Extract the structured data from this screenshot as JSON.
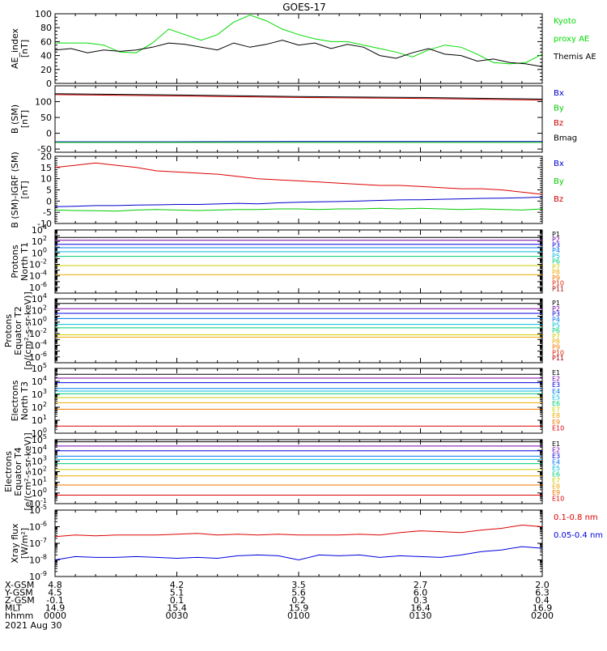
{
  "title": "GOES-17",
  "date_label": "2021 Aug 30",
  "bottom_rows": [
    {
      "label": "X-GSM",
      "values": [
        "4.8",
        "4.2",
        "3.5",
        "2.7",
        "2.0"
      ]
    },
    {
      "label": "Y-GSM",
      "values": [
        "4.5",
        "5.1",
        "5.6",
        "6.0",
        "6.3"
      ]
    },
    {
      "label": "Z-GSM",
      "values": [
        "-0.1",
        "0.1",
        "0.2",
        "0.3",
        "0.4"
      ]
    },
    {
      "label": "MLT",
      "values": [
        "14.9",
        "15.4",
        "15.9",
        "16.4",
        "16.9"
      ]
    },
    {
      "label": "hhmm",
      "values": [
        "0000",
        "0030",
        "0100",
        "0130",
        "0200"
      ]
    }
  ],
  "chart_data": [
    {
      "type": "line",
      "ylabel": [
        "AE_index",
        "[nT]"
      ],
      "ylim": [
        0,
        100
      ],
      "ticks": [
        "0",
        "20",
        "40",
        "60",
        "80",
        "100"
      ],
      "minor_ticks": 4,
      "x": [
        0,
        4,
        8,
        12,
        16,
        20,
        24,
        28,
        32,
        36,
        40,
        44,
        48,
        52,
        56,
        60,
        64,
        68,
        72,
        76,
        80,
        84,
        88,
        92,
        96,
        100,
        104,
        108,
        112,
        116,
        120
      ],
      "series": [
        {
          "name": "Kyoto proxy AE",
          "color": "#00dd00",
          "values": [
            58,
            58,
            58,
            55,
            45,
            44,
            58,
            78,
            70,
            62,
            70,
            88,
            98,
            90,
            78,
            70,
            64,
            60,
            60,
            55,
            50,
            45,
            38,
            48,
            55,
            52,
            42,
            30,
            28,
            30,
            42
          ]
        },
        {
          "name": "Themis AE",
          "color": "#000000",
          "values": [
            48,
            50,
            44,
            48,
            46,
            48,
            52,
            58,
            56,
            52,
            48,
            58,
            52,
            56,
            62,
            55,
            58,
            50,
            56,
            52,
            40,
            36,
            44,
            50,
            42,
            40,
            32,
            35,
            30,
            28,
            24
          ]
        }
      ],
      "legend": [
        {
          "text": "Kyoto",
          "color": "#00dd00"
        },
        {
          "text": "proxy AE",
          "color": "#00dd00"
        },
        {
          "text": "Themis AE",
          "color": "#000000"
        }
      ]
    },
    {
      "type": "line",
      "ylabel": [
        "B (SM)",
        "[nT]"
      ],
      "ylim": [
        -60,
        150
      ],
      "ticks": [
        "-50",
        "0",
        "50",
        "100"
      ],
      "tick_values": [
        -50,
        0,
        50,
        100
      ],
      "x": [
        0,
        30,
        60,
        90,
        120
      ],
      "series": [
        {
          "name": "Bx",
          "color": "#0000cc",
          "values": [
            -27,
            -27,
            -26,
            -26,
            -26
          ]
        },
        {
          "name": "By",
          "color": "#00cc00",
          "values": [
            -29,
            -29,
            -29,
            -29,
            -29
          ]
        },
        {
          "name": "Bz",
          "color": "#cc0000",
          "values": [
            122,
            118,
            113,
            110,
            105
          ]
        },
        {
          "name": "Bmag",
          "color": "#000000",
          "values": [
            125,
            121,
            116,
            113,
            108
          ]
        }
      ],
      "legend": [
        {
          "text": "Bx",
          "color": "#0000cc"
        },
        {
          "text": "By",
          "color": "#00cc00"
        },
        {
          "text": "Bz",
          "color": "#cc0000"
        },
        {
          "text": "Bmag",
          "color": "#000000"
        }
      ]
    },
    {
      "type": "line",
      "ylabel": [
        "B (SM)-IGRF (SM)",
        "[nT]"
      ],
      "ylim": [
        -10,
        20
      ],
      "ticks": [
        "-10",
        "-5",
        "0",
        "5",
        "10",
        "15",
        "20"
      ],
      "minor_ticks": 5,
      "x": [
        0,
        5,
        10,
        15,
        20,
        25,
        30,
        35,
        40,
        45,
        50,
        55,
        60,
        65,
        70,
        75,
        80,
        85,
        90,
        95,
        100,
        105,
        110,
        115,
        120
      ],
      "series": [
        {
          "name": "Bx",
          "color": "#0000cc",
          "values": [
            -2.5,
            -2.3,
            -2.0,
            -2.0,
            -1.8,
            -1.7,
            -1.5,
            -1.5,
            -1.3,
            -1.0,
            -1.2,
            -0.8,
            -0.5,
            -0.3,
            -0.2,
            0,
            0.3,
            0.5,
            0.6,
            0.8,
            1.0,
            1.2,
            1.3,
            1.5,
            1.8
          ]
        },
        {
          "name": "By",
          "color": "#00cc00",
          "values": [
            -4.0,
            -4.2,
            -4.3,
            -4.5,
            -4.0,
            -3.8,
            -4.0,
            -4.2,
            -4.0,
            -3.8,
            -3.8,
            -3.5,
            -3.5,
            -3.8,
            -3.5,
            -3.5,
            -3.2,
            -3.5,
            -3.2,
            -3.5,
            -3.8,
            -3.5,
            -3.8,
            -4.0,
            -3.5
          ]
        },
        {
          "name": "Bz",
          "color": "#dd0000",
          "values": [
            15,
            16,
            17,
            16,
            15,
            13.5,
            13,
            12.5,
            12,
            11,
            10,
            9.5,
            9,
            8.5,
            8,
            7.5,
            7,
            7,
            6.5,
            6,
            5.5,
            5.5,
            5,
            4,
            3
          ]
        }
      ],
      "legend": [
        {
          "text": "Bx",
          "color": "#0000cc"
        },
        {
          "text": "By",
          "color": "#00cc00"
        },
        {
          "text": "Bz",
          "color": "#cc0000"
        }
      ]
    },
    {
      "type": "line",
      "scale": "log",
      "ylabel": [
        "Protons",
        "North T1"
      ],
      "ylim": [
        -7,
        4
      ],
      "decade_labels": [
        -6,
        -4,
        -2,
        0,
        2,
        4
      ],
      "x": [
        0,
        120
      ],
      "series": [
        {
          "name": "P1",
          "color": "#000000",
          "values": [
            2.7,
            2.7
          ]
        },
        {
          "name": "P2",
          "color": "#7700aa",
          "values": [
            2.2,
            2.2
          ]
        },
        {
          "name": "P3",
          "color": "#0000dd",
          "values": [
            1.5,
            1.5
          ]
        },
        {
          "name": "P4",
          "color": "#0077ee",
          "values": [
            0.9,
            0.9
          ]
        },
        {
          "name": "P5",
          "color": "#00bbdd",
          "values": [
            0.2,
            0.2
          ]
        },
        {
          "name": "P6",
          "color": "#00cc77",
          "values": [
            -0.6,
            -0.6
          ]
        },
        {
          "name": "P7",
          "color": "#cccc00",
          "values": [
            -2.2,
            -2.2
          ]
        },
        {
          "name": "P8",
          "color": "#eeaa00",
          "values": [
            -3.8,
            -3.8
          ]
        }
      ],
      "legend": [
        {
          "text": "P1",
          "color": "#000000"
        },
        {
          "text": "P2",
          "color": "#7700aa"
        },
        {
          "text": "P3",
          "color": "#0000dd"
        },
        {
          "text": "P4",
          "color": "#0077ee"
        },
        {
          "text": "P5",
          "color": "#00bbdd"
        },
        {
          "text": "P6",
          "color": "#00cc77"
        },
        {
          "text": "P7",
          "color": "#cccc00"
        },
        {
          "text": "P8",
          "color": "#eeaa00"
        },
        {
          "text": "P9",
          "color": "#ee7700"
        },
        {
          "text": "P10",
          "color": "#dd2200"
        },
        {
          "text": "P11",
          "color": "#aa0000"
        }
      ]
    },
    {
      "type": "line",
      "scale": "log",
      "ylabel": [
        "Protons",
        "Equator T2",
        "[p/(cm²-s-sr-keV)]"
      ],
      "ylim": [
        -7,
        4
      ],
      "decade_labels": [
        -6,
        -4,
        -2,
        0,
        2,
        4
      ],
      "x": [
        0,
        120
      ],
      "series": [
        {
          "name": "P1",
          "color": "#000000",
          "values": [
            3.2,
            3.2
          ]
        },
        {
          "name": "P2",
          "color": "#7700aa",
          "values": [
            2.3,
            2.3
          ]
        },
        {
          "name": "P3",
          "color": "#0000dd",
          "values": [
            1.5,
            1.5
          ]
        },
        {
          "name": "P4",
          "color": "#0077ee",
          "values": [
            0.6,
            0.6
          ]
        },
        {
          "name": "P5",
          "color": "#00bbdd",
          "values": [
            -0.4,
            -0.4
          ]
        },
        {
          "name": "P6",
          "color": "#00cc77",
          "values": [
            -1.0,
            -1.0
          ]
        },
        {
          "name": "P7",
          "color": "#cccc00",
          "values": [
            -2.2,
            -2.2
          ]
        },
        {
          "name": "P8",
          "color": "#eeaa00",
          "values": [
            -2.6,
            -2.6
          ]
        }
      ],
      "legend": [
        {
          "text": "P1",
          "color": "#000000"
        },
        {
          "text": "P2",
          "color": "#7700aa"
        },
        {
          "text": "P3",
          "color": "#0000dd"
        },
        {
          "text": "P4",
          "color": "#0077ee"
        },
        {
          "text": "P5",
          "color": "#00bbdd"
        },
        {
          "text": "P6",
          "color": "#00cc77"
        },
        {
          "text": "P7",
          "color": "#cccc00"
        },
        {
          "text": "P8",
          "color": "#eeaa00"
        },
        {
          "text": "P9",
          "color": "#ee7700"
        },
        {
          "text": "P10",
          "color": "#dd2200"
        },
        {
          "text": "P11",
          "color": "#aa0000"
        }
      ]
    },
    {
      "type": "line",
      "scale": "log",
      "ylabel": [
        "Electrons",
        "North T3"
      ],
      "ylim": [
        0,
        5
      ],
      "decade_labels": [
        0,
        1,
        2,
        3,
        4,
        5
      ],
      "x": [
        0,
        120
      ],
      "series": [
        {
          "name": "E1",
          "color": "#000000",
          "values": [
            4.55,
            4.55
          ]
        },
        {
          "name": "E2",
          "color": "#7700aa",
          "values": [
            4.25,
            4.25
          ]
        },
        {
          "name": "E3",
          "color": "#0000dd",
          "values": [
            3.9,
            3.9
          ]
        },
        {
          "name": "E4",
          "color": "#0077ee",
          "values": [
            3.45,
            3.45
          ]
        },
        {
          "name": "E5",
          "color": "#00bbdd",
          "values": [
            3.25,
            3.25
          ]
        },
        {
          "name": "E6",
          "color": "#00cc77",
          "values": [
            3.05,
            3.05
          ]
        },
        {
          "name": "E7",
          "color": "#cccc00",
          "values": [
            2.75,
            2.75
          ]
        },
        {
          "name": "E8",
          "color": "#eeaa00",
          "values": [
            2.35,
            2.35
          ]
        },
        {
          "name": "E9",
          "color": "#ee7700",
          "values": [
            1.85,
            1.85
          ]
        },
        {
          "name": "E10",
          "color": "#dd0000",
          "values": [
            0.55,
            0.55
          ]
        }
      ],
      "legend": [
        {
          "text": "E1",
          "color": "#000000"
        },
        {
          "text": "E2",
          "color": "#7700aa"
        },
        {
          "text": "E3",
          "color": "#0000dd"
        },
        {
          "text": "E4",
          "color": "#0077ee"
        },
        {
          "text": "E5",
          "color": "#00bbdd"
        },
        {
          "text": "E6",
          "color": "#00cc77"
        },
        {
          "text": "E7",
          "color": "#cccc00"
        },
        {
          "text": "E8",
          "color": "#eeaa00"
        },
        {
          "text": "E9",
          "color": "#ee7700"
        },
        {
          "text": "E10",
          "color": "#dd0000"
        }
      ]
    },
    {
      "type": "line",
      "scale": "log",
      "ylabel": [
        "Electrons",
        "Equator T4",
        "[e/(cm²-s-sr-keV)]"
      ],
      "ylim": [
        -1,
        5
      ],
      "decade_labels": [
        -1,
        0,
        1,
        2,
        3,
        4,
        5
      ],
      "x": [
        0,
        120
      ],
      "series": [
        {
          "name": "E1",
          "color": "#000000",
          "values": [
            4.8,
            4.8
          ]
        },
        {
          "name": "E2",
          "color": "#7700aa",
          "values": [
            4.4,
            4.4
          ]
        },
        {
          "name": "E3",
          "color": "#0000dd",
          "values": [
            3.95,
            3.95
          ]
        },
        {
          "name": "E4",
          "color": "#0077ee",
          "values": [
            3.45,
            3.45
          ]
        },
        {
          "name": "E5",
          "color": "#00bbdd",
          "values": [
            3.15,
            3.15
          ]
        },
        {
          "name": "E6",
          "color": "#00cc77",
          "values": [
            2.75,
            2.75
          ]
        },
        {
          "name": "E7",
          "color": "#cccc00",
          "values": [
            2.2,
            2.2
          ]
        },
        {
          "name": "E8",
          "color": "#eeaa00",
          "values": [
            1.6,
            1.6
          ]
        },
        {
          "name": "E9",
          "color": "#ee7700",
          "values": [
            0.75,
            0.75
          ]
        },
        {
          "name": "E10",
          "color": "#dd0000",
          "values": [
            -0.2,
            -0.2
          ]
        }
      ],
      "legend": [
        {
          "text": "E1",
          "color": "#000000"
        },
        {
          "text": "E2",
          "color": "#7700aa"
        },
        {
          "text": "E3",
          "color": "#0000dd"
        },
        {
          "text": "E4",
          "color": "#0077ee"
        },
        {
          "text": "E5",
          "color": "#00bbdd"
        },
        {
          "text": "E6",
          "color": "#00cc77"
        },
        {
          "text": "E7",
          "color": "#cccc00"
        },
        {
          "text": "E8",
          "color": "#eeaa00"
        },
        {
          "text": "E9",
          "color": "#ee7700"
        },
        {
          "text": "E10",
          "color": "#dd0000"
        }
      ]
    },
    {
      "type": "line",
      "scale": "log",
      "ylabel": [
        "Xray flux",
        "[W/m²]"
      ],
      "ylim": [
        -9,
        -5
      ],
      "decade_labels": [
        -9,
        -8,
        -7,
        -6,
        -5
      ],
      "x": [
        0,
        5,
        10,
        15,
        20,
        25,
        30,
        35,
        40,
        45,
        50,
        55,
        60,
        65,
        70,
        75,
        80,
        85,
        90,
        95,
        100,
        105,
        110,
        115,
        120
      ],
      "series": [
        {
          "name": "0.1-0.8 nm",
          "color": "#dd0000",
          "values": [
            -6.6,
            -6.5,
            -6.55,
            -6.5,
            -6.5,
            -6.5,
            -6.45,
            -6.4,
            -6.5,
            -6.45,
            -6.5,
            -6.45,
            -6.5,
            -6.5,
            -6.5,
            -6.45,
            -6.5,
            -6.35,
            -6.25,
            -6.3,
            -6.35,
            -6.2,
            -6.1,
            -5.9,
            -6.0
          ]
        },
        {
          "name": "0.05-0.4 nm",
          "color": "#0000dd",
          "values": [
            -8.0,
            -7.8,
            -7.85,
            -7.85,
            -7.8,
            -7.85,
            -7.9,
            -7.85,
            -7.9,
            -7.75,
            -7.7,
            -7.75,
            -8.0,
            -7.7,
            -7.75,
            -7.7,
            -7.85,
            -7.75,
            -7.8,
            -7.85,
            -7.7,
            -7.5,
            -7.4,
            -7.2,
            -7.3
          ]
        }
      ],
      "legend": [
        {
          "text": "0.1-0.8 nm",
          "color": "#dd0000"
        },
        {
          "text": "0.05-0.4 nm",
          "color": "#0000dd"
        }
      ]
    }
  ]
}
